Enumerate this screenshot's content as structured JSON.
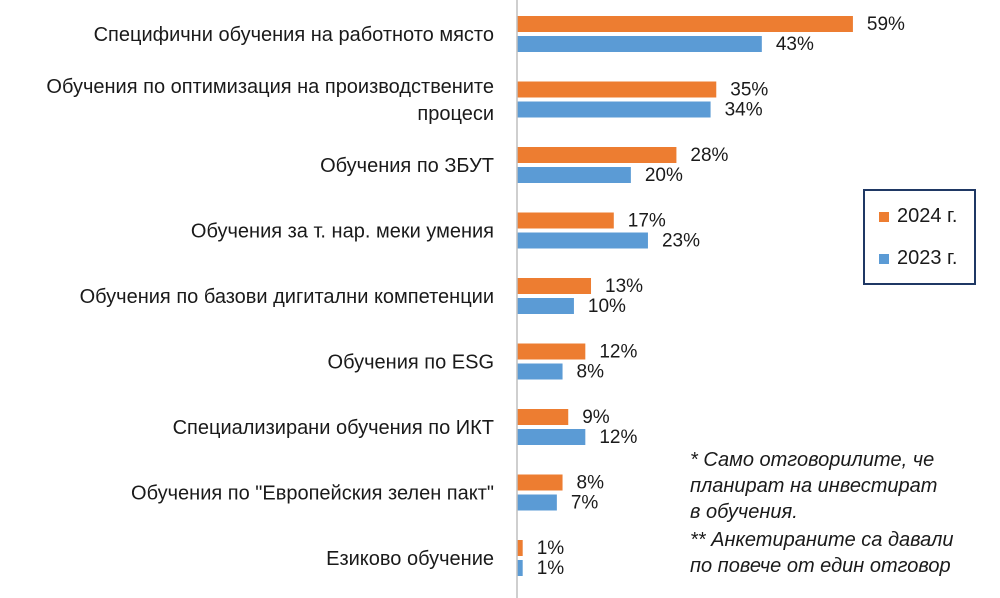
{
  "chart_data": {
    "type": "bar",
    "orientation": "horizontal",
    "categories": [
      "Специфични обучения на работното място",
      "Обучения по оптимизация на производствените процеси",
      "Обучения по ЗБУТ",
      "Обучения за т. нар. меки умения",
      "Обучения по базови дигитални компетенции",
      "Обучения по ESG",
      "Специализирани обучения по ИКТ",
      "Обучения по \"Европейския зелен пакт\"",
      "Езиково обучение"
    ],
    "category_lines": [
      [
        "Специфични обучения на работното място"
      ],
      [
        "Обучения по оптимизация на производствените",
        "процеси"
      ],
      [
        "Обучения по ЗБУТ"
      ],
      [
        "Обучения за т. нар. меки умения"
      ],
      [
        "Обучения по базови дигитални компетенции"
      ],
      [
        "Обучения по ESG"
      ],
      [
        "Специализирани обучения по ИКТ"
      ],
      [
        "Обучения по \"Европейския зелен пакт\""
      ],
      [
        "Езиково обучение"
      ]
    ],
    "series": [
      {
        "name": "2024 г.",
        "color": "#ed7d31",
        "values": [
          59,
          35,
          28,
          17,
          13,
          12,
          9,
          8,
          1
        ],
        "labels": [
          "59%",
          "35%",
          "28%",
          "17%",
          "13%",
          "12%",
          "9%",
          "8%",
          "1%"
        ]
      },
      {
        "name": "2023 г.",
        "color": "#5b9bd5",
        "values": [
          43,
          34,
          20,
          23,
          10,
          8,
          12,
          7,
          1
        ],
        "labels": [
          "43%",
          "34%",
          "20%",
          "23%",
          "10%",
          "8%",
          "12%",
          "7%",
          "1%"
        ]
      }
    ],
    "xlim": [
      0,
      62
    ],
    "unit": "%",
    "grid": false,
    "legend_position": "right",
    "axis_color": "#bfbfbf"
  },
  "legend": {
    "items": [
      {
        "label": "2024 г.",
        "color": "#ed7d31"
      },
      {
        "label": "2023 г.",
        "color": "#5b9bd5"
      }
    ]
  },
  "footnotes": {
    "line1": "* Само отговорилите, че",
    "line2": "планират на инвестират",
    "line3": "в обучения.",
    "line4": "** Анкетираните са давали",
    "line5": "по повече от един отговор"
  }
}
